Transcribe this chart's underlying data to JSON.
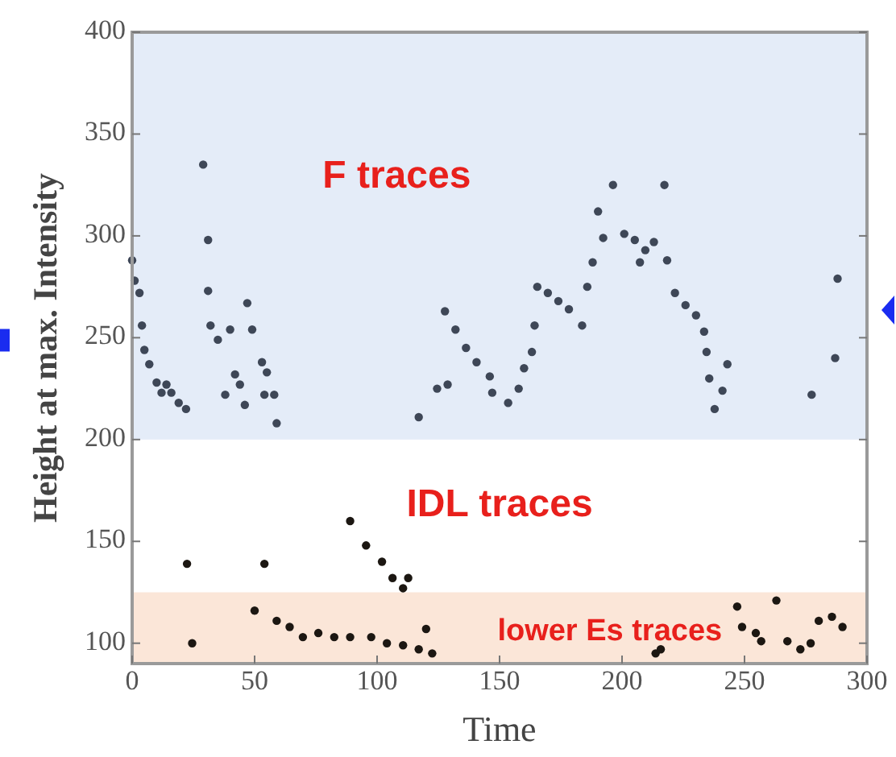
{
  "chart_data": {
    "type": "scatter",
    "xlabel": "Time",
    "ylabel": "Height at max. Intensity",
    "xlim": [
      0,
      300
    ],
    "xticks": [
      0,
      50,
      100,
      150,
      200,
      250,
      300
    ],
    "ylim": [
      90,
      400
    ],
    "yticks": [
      100,
      150,
      200,
      250,
      300,
      350,
      400
    ],
    "grid": false,
    "marker": "circle",
    "bands": [
      {
        "axis": "y",
        "from": 200,
        "to": 400,
        "color": "#e4ecf8"
      },
      {
        "axis": "y",
        "from": 90,
        "to": 125,
        "color": "#fbe6d8"
      }
    ],
    "annotations": [
      "F traces",
      "IDL traces",
      "lower Es traces"
    ],
    "series": [
      {
        "color": "#3e4757",
        "x": [
          0,
          1,
          3,
          4,
          5,
          7,
          10,
          12,
          14,
          16,
          19,
          22,
          29,
          31,
          31,
          32,
          35,
          38,
          40,
          42,
          44,
          46,
          47,
          49,
          53,
          54,
          55,
          58,
          59,
          117,
          124.5,
          127.7,
          128.8,
          132,
          136.3,
          140.6,
          146,
          147,
          153.5,
          157.8,
          160,
          163.2,
          164.3,
          165.4,
          169.7,
          174,
          178.3,
          183.7,
          185.8,
          188,
          190.2,
          192.3,
          196.3,
          200.9,
          205.2,
          207.3,
          209.5,
          213,
          217.3,
          218.4,
          221.6,
          225.9,
          230.2,
          233.5,
          234.5,
          235.6,
          237.8,
          241,
          243,
          277.4,
          287,
          288
        ],
        "values": [
          288,
          278,
          272,
          256,
          244,
          237,
          228,
          223,
          227,
          223,
          218,
          215,
          335,
          298,
          273,
          256,
          249,
          222,
          254,
          232,
          227,
          217,
          267,
          254,
          238,
          222,
          233,
          222,
          208,
          211,
          225,
          263,
          227,
          254,
          245,
          238,
          231,
          223,
          218,
          225,
          235,
          243,
          256,
          275,
          272,
          268,
          264,
          256,
          275,
          287,
          312,
          299,
          325,
          301,
          298,
          287,
          293,
          297,
          325,
          288,
          272,
          266,
          261,
          253,
          243,
          230,
          215,
          224,
          237,
          222,
          240,
          279
        ]
      },
      {
        "color": "#1c1712",
        "x": [
          22.4,
          54,
          89,
          95.5,
          102,
          106.3,
          110.6,
          112.7,
          24.5,
          50,
          59,
          64.3,
          69.7,
          76,
          82.5,
          89,
          97.6,
          104,
          110.6,
          117,
          120,
          122.5,
          213.7,
          215.8,
          247,
          249,
          254.6,
          256.8,
          263,
          267.5,
          272.8,
          277,
          280.3,
          285.7,
          290
        ],
        "values": [
          139,
          139,
          160,
          148,
          140,
          132,
          127,
          132,
          100,
          116,
          111,
          108,
          103,
          105,
          103,
          103,
          103,
          100,
          99,
          97,
          107,
          95,
          95,
          97,
          118,
          108,
          105,
          101,
          121,
          101,
          97,
          100,
          111,
          113,
          108
        ]
      }
    ]
  }
}
